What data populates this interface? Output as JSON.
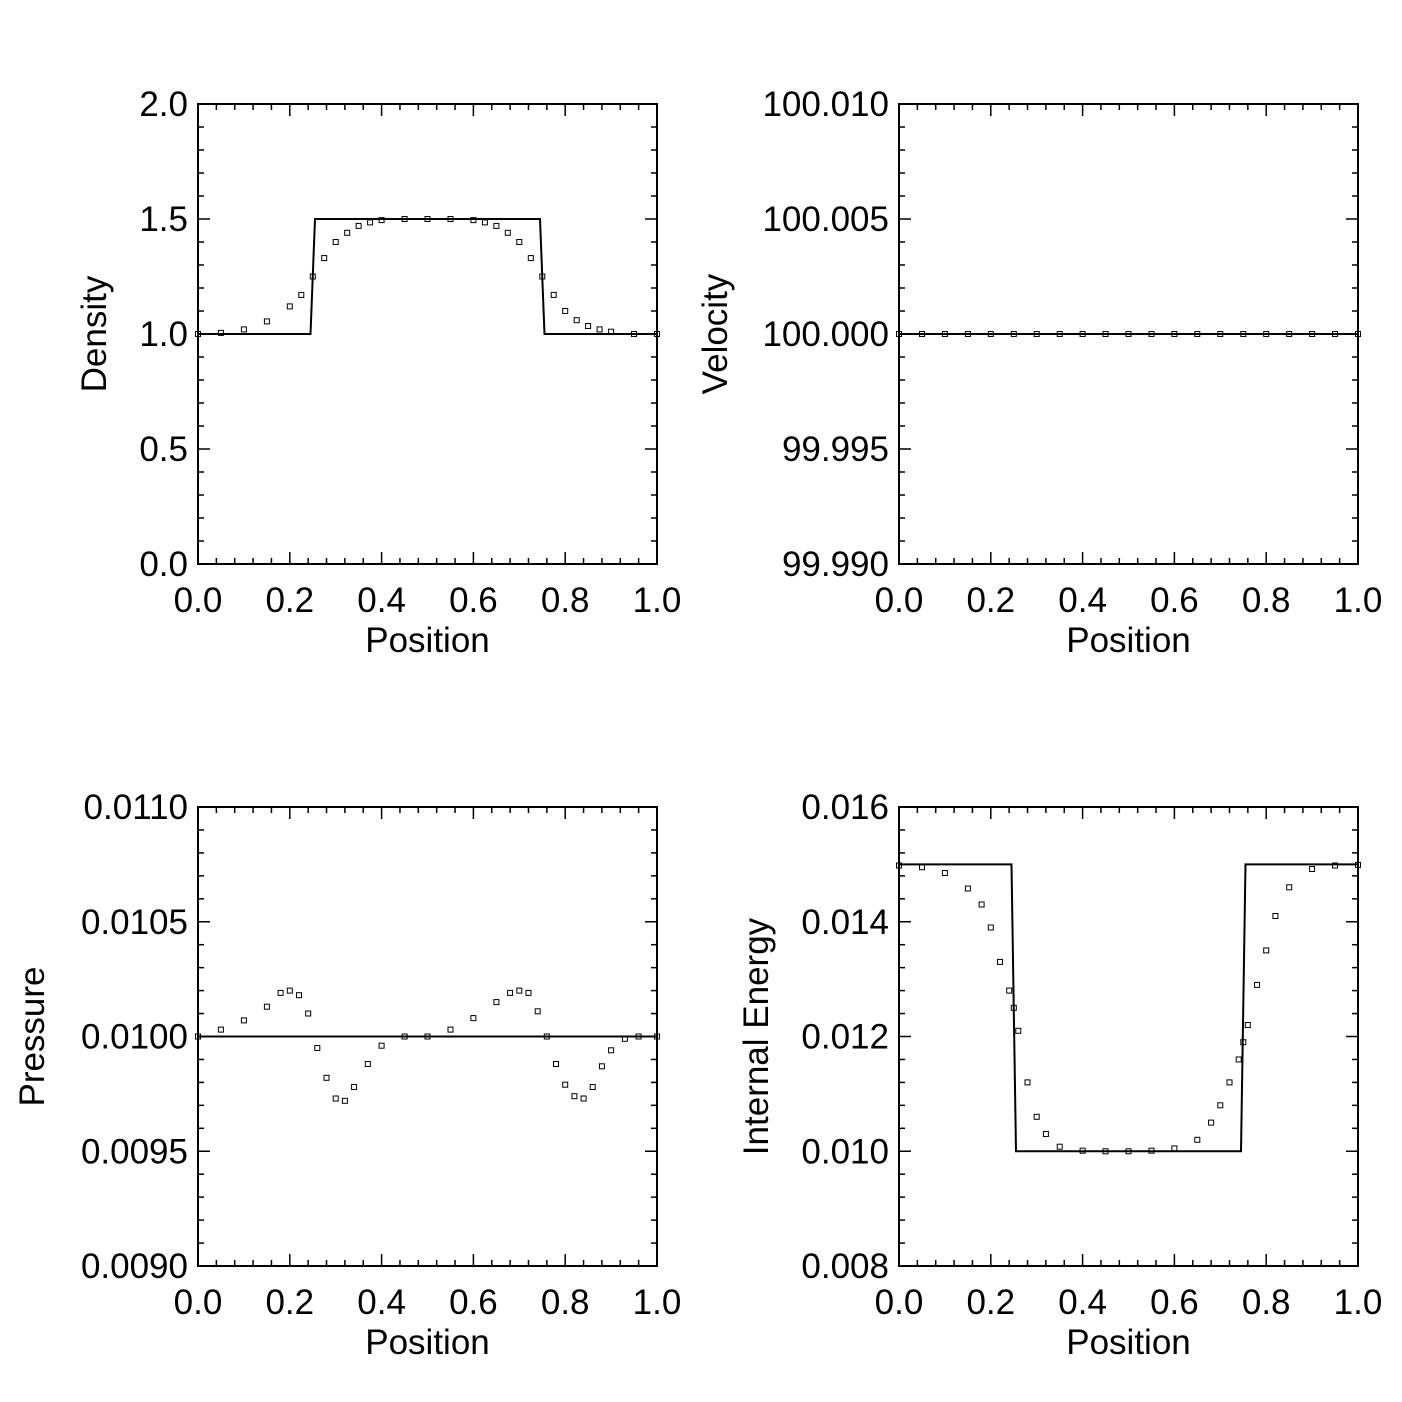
{
  "chart_data": [
    {
      "type": "line",
      "panel": "top-left",
      "xlabel": "Position",
      "ylabel": "Density",
      "xlim": [
        0.0,
        1.0
      ],
      "ylim": [
        0.0,
        2.0
      ],
      "xticks": [
        "0.0",
        "0.2",
        "0.4",
        "0.6",
        "0.8",
        "1.0"
      ],
      "yticks": [
        "0.0",
        "0.5",
        "1.0",
        "1.5",
        "2.0"
      ],
      "grid": false,
      "series": [
        {
          "style": "solid-line",
          "x": [
            0.0,
            0.245,
            0.255,
            0.745,
            0.755,
            1.0
          ],
          "y": [
            1.0,
            1.0,
            1.5,
            1.5,
            1.0,
            1.0
          ]
        },
        {
          "style": "square-markers",
          "x": [
            0.0,
            0.05,
            0.1,
            0.15,
            0.2,
            0.225,
            0.25,
            0.275,
            0.3,
            0.325,
            0.35,
            0.375,
            0.4,
            0.45,
            0.5,
            0.55,
            0.6,
            0.625,
            0.65,
            0.675,
            0.7,
            0.725,
            0.75,
            0.775,
            0.8,
            0.825,
            0.85,
            0.875,
            0.9,
            0.95,
            1.0
          ],
          "y": [
            1.0,
            1.005,
            1.02,
            1.055,
            1.12,
            1.17,
            1.25,
            1.33,
            1.4,
            1.44,
            1.47,
            1.485,
            1.495,
            1.5,
            1.5,
            1.5,
            1.495,
            1.485,
            1.47,
            1.44,
            1.4,
            1.33,
            1.25,
            1.17,
            1.1,
            1.06,
            1.035,
            1.02,
            1.01,
            1.0,
            1.0
          ]
        }
      ]
    },
    {
      "type": "line",
      "panel": "top-right",
      "xlabel": "Position",
      "ylabel": "Velocity",
      "xlim": [
        0.0,
        1.0
      ],
      "ylim": [
        99.99,
        100.01
      ],
      "xticks": [
        "0.0",
        "0.2",
        "0.4",
        "0.6",
        "0.8",
        "1.0"
      ],
      "yticks": [
        "99.990",
        "99.995",
        "100.000",
        "100.005",
        "100.010"
      ],
      "grid": false,
      "series": [
        {
          "style": "solid-line",
          "x": [
            0.0,
            1.0
          ],
          "y": [
            100.0,
            100.0
          ]
        },
        {
          "style": "square-markers",
          "x": [
            0.0,
            0.05,
            0.1,
            0.15,
            0.2,
            0.25,
            0.3,
            0.35,
            0.4,
            0.45,
            0.5,
            0.55,
            0.6,
            0.65,
            0.7,
            0.75,
            0.8,
            0.85,
            0.9,
            0.95,
            1.0
          ],
          "y": [
            100.0,
            100.0,
            100.0,
            100.0,
            100.0,
            100.0,
            100.0,
            100.0,
            100.0,
            100.0,
            100.0,
            100.0,
            100.0,
            100.0,
            100.0,
            100.0,
            100.0,
            100.0,
            100.0,
            100.0,
            100.0
          ]
        }
      ]
    },
    {
      "type": "line",
      "panel": "bottom-left",
      "xlabel": "Position",
      "ylabel": "Pressure",
      "xlim": [
        0.0,
        1.0
      ],
      "ylim": [
        0.009,
        0.011
      ],
      "xticks": [
        "0.0",
        "0.2",
        "0.4",
        "0.6",
        "0.8",
        "1.0"
      ],
      "yticks": [
        "0.0090",
        "0.0095",
        "0.0100",
        "0.0105",
        "0.0110"
      ],
      "grid": false,
      "series": [
        {
          "style": "solid-line",
          "x": [
            0.0,
            1.0
          ],
          "y": [
            0.01,
            0.01
          ]
        },
        {
          "style": "square-markers",
          "x": [
            0.0,
            0.05,
            0.1,
            0.15,
            0.18,
            0.2,
            0.22,
            0.24,
            0.26,
            0.28,
            0.3,
            0.32,
            0.34,
            0.37,
            0.4,
            0.45,
            0.5,
            0.55,
            0.6,
            0.65,
            0.68,
            0.7,
            0.72,
            0.74,
            0.76,
            0.78,
            0.8,
            0.82,
            0.84,
            0.86,
            0.88,
            0.9,
            0.93,
            0.96,
            1.0
          ],
          "y": [
            0.01,
            0.01003,
            0.01007,
            0.01013,
            0.01019,
            0.0102,
            0.01018,
            0.0101,
            0.00995,
            0.00982,
            0.00973,
            0.00972,
            0.00978,
            0.00988,
            0.00996,
            0.01,
            0.01,
            0.01003,
            0.01008,
            0.01015,
            0.01019,
            0.0102,
            0.01019,
            0.01011,
            0.01,
            0.00988,
            0.00979,
            0.00974,
            0.00973,
            0.00978,
            0.00987,
            0.00994,
            0.00999,
            0.01,
            0.01
          ]
        }
      ]
    },
    {
      "type": "line",
      "panel": "bottom-right",
      "xlabel": "Position",
      "ylabel": "Internal Energy",
      "xlim": [
        0.0,
        1.0
      ],
      "ylim": [
        0.008,
        0.016
      ],
      "xticks": [
        "0.0",
        "0.2",
        "0.4",
        "0.6",
        "0.8",
        "1.0"
      ],
      "yticks": [
        "0.008",
        "0.010",
        "0.012",
        "0.014",
        "0.016"
      ],
      "grid": false,
      "series": [
        {
          "style": "solid-line",
          "x": [
            0.0,
            0.245,
            0.255,
            0.745,
            0.755,
            1.0
          ],
          "y": [
            0.015,
            0.015,
            0.01,
            0.01,
            0.015,
            0.015
          ]
        },
        {
          "style": "square-markers",
          "x": [
            0.0,
            0.05,
            0.1,
            0.15,
            0.18,
            0.2,
            0.22,
            0.24,
            0.25,
            0.26,
            0.28,
            0.3,
            0.32,
            0.35,
            0.4,
            0.45,
            0.5,
            0.55,
            0.6,
            0.65,
            0.68,
            0.7,
            0.72,
            0.74,
            0.75,
            0.76,
            0.78,
            0.8,
            0.82,
            0.85,
            0.9,
            0.95,
            1.0
          ],
          "y": [
            0.01498,
            0.01495,
            0.01485,
            0.01458,
            0.0143,
            0.0139,
            0.0133,
            0.0128,
            0.0125,
            0.0121,
            0.0112,
            0.0106,
            0.0103,
            0.01008,
            0.01001,
            0.01,
            0.01,
            0.01001,
            0.01005,
            0.0102,
            0.0105,
            0.0108,
            0.0112,
            0.0116,
            0.0119,
            0.0122,
            0.0129,
            0.0135,
            0.0141,
            0.0146,
            0.01492,
            0.01498,
            0.01499
          ]
        }
      ]
    }
  ]
}
